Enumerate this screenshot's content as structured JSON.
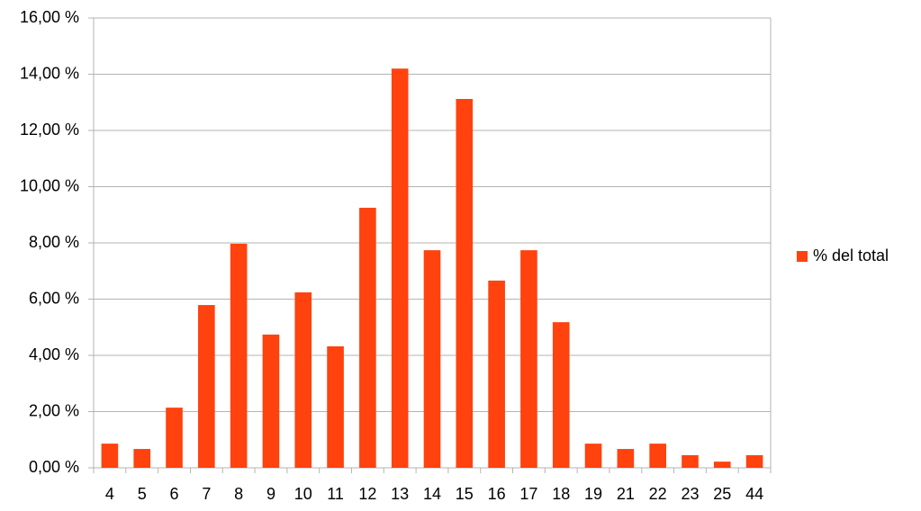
{
  "chart_data": {
    "type": "bar",
    "categories": [
      "4",
      "5",
      "6",
      "7",
      "8",
      "9",
      "10",
      "11",
      "12",
      "13",
      "14",
      "15",
      "16",
      "17",
      "18",
      "19",
      "21",
      "22",
      "23",
      "25",
      "44"
    ],
    "series": [
      {
        "name": "% del total",
        "color": "#ff420e",
        "values": [
          0.86,
          0.67,
          2.14,
          5.79,
          7.97,
          4.74,
          6.24,
          4.32,
          9.25,
          14.2,
          7.74,
          13.12,
          6.66,
          7.74,
          5.18,
          0.86,
          0.67,
          0.86,
          0.45,
          0.22,
          0.45
        ]
      }
    ],
    "ylim": [
      0,
      16
    ],
    "yticks": [
      {
        "value": 0,
        "label": "0,00 %"
      },
      {
        "value": 2,
        "label": "2,00 %"
      },
      {
        "value": 4,
        "label": "4,00 %"
      },
      {
        "value": 6,
        "label": "6,00 %"
      },
      {
        "value": 8,
        "label": "8,00 %"
      },
      {
        "value": 10,
        "label": "10,00 %"
      },
      {
        "value": 12,
        "label": "12,00 %"
      },
      {
        "value": 14,
        "label": "14,00 %"
      },
      {
        "value": 16,
        "label": "16,00 %"
      }
    ],
    "grid": true,
    "legend": "right"
  }
}
